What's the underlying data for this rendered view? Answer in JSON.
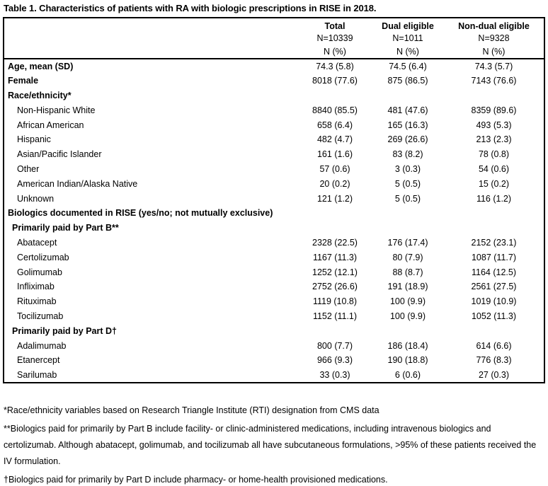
{
  "title": "Table 1. Characteristics of patients with RA with biologic prescriptions in RISE in 2018.",
  "table": {
    "columns": [
      {
        "label": "Total",
        "n": "N=10339",
        "unit": "N (%)"
      },
      {
        "label": "Dual eligible",
        "n": "N=1011",
        "unit": "N (%)"
      },
      {
        "label": "Non-dual eligible",
        "n": "N=9328",
        "unit": "N (%)"
      }
    ],
    "rows": [
      {
        "label": "Age, mean (SD)",
        "bold": true,
        "indent": 0,
        "values": [
          "74.3 (5.8)",
          "74.5 (6.4)",
          "74.3 (5.7)"
        ]
      },
      {
        "label": "Female",
        "bold": true,
        "indent": 0,
        "values": [
          "8018 (77.6)",
          "875 (86.5)",
          "7143 (76.6)"
        ]
      },
      {
        "label": "Race/ethnicity*",
        "bold": true,
        "indent": 0,
        "values": [
          "",
          "",
          ""
        ]
      },
      {
        "label": "Non-Hispanic White",
        "bold": false,
        "indent": 2,
        "values": [
          "8840 (85.5)",
          "481 (47.6)",
          "8359 (89.6)"
        ]
      },
      {
        "label": "African American",
        "bold": false,
        "indent": 2,
        "values": [
          "658 (6.4)",
          "165 (16.3)",
          "493 (5.3)"
        ]
      },
      {
        "label": "Hispanic",
        "bold": false,
        "indent": 2,
        "values": [
          "482 (4.7)",
          "269 (26.6)",
          "213 (2.3)"
        ]
      },
      {
        "label": "Asian/Pacific Islander",
        "bold": false,
        "indent": 2,
        "values": [
          "161 (1.6)",
          "83 (8.2)",
          "78 (0.8)"
        ]
      },
      {
        "label": "Other",
        "bold": false,
        "indent": 2,
        "values": [
          "57 (0.6)",
          "3 (0.3)",
          "54 (0.6)"
        ]
      },
      {
        "label": "American Indian/Alaska Native",
        "bold": false,
        "indent": 2,
        "values": [
          "20 (0.2)",
          "5 (0.5)",
          "15 (0.2)"
        ]
      },
      {
        "label": "Unknown",
        "bold": false,
        "indent": 2,
        "values": [
          "121 (1.2)",
          "5 (0.5)",
          "116 (1.2)"
        ]
      },
      {
        "label": "Biologics documented in RISE (yes/no; not mutually exclusive)",
        "bold": true,
        "indent": 0,
        "values": [
          "",
          "",
          ""
        ]
      },
      {
        "label": "Primarily paid by Part B**",
        "bold": true,
        "indent": 1,
        "values": [
          "",
          "",
          ""
        ]
      },
      {
        "label": "Abatacept",
        "bold": false,
        "indent": 2,
        "values": [
          "2328 (22.5)",
          "176 (17.4)",
          "2152 (23.1)"
        ]
      },
      {
        "label": "Certolizumab",
        "bold": false,
        "indent": 2,
        "values": [
          "1167 (11.3)",
          "80 (7.9)",
          "1087 (11.7)"
        ]
      },
      {
        "label": "Golimumab",
        "bold": false,
        "indent": 2,
        "values": [
          "1252 (12.1)",
          "88 (8.7)",
          "1164 (12.5)"
        ]
      },
      {
        "label": "Infliximab",
        "bold": false,
        "indent": 2,
        "values": [
          "2752 (26.6)",
          "191 (18.9)",
          "2561 (27.5)"
        ]
      },
      {
        "label": "Rituximab",
        "bold": false,
        "indent": 2,
        "values": [
          "1119 (10.8)",
          "100 (9.9)",
          "1019 (10.9)"
        ]
      },
      {
        "label": "Tocilizumab",
        "bold": false,
        "indent": 2,
        "values": [
          "1152 (11.1)",
          "100 (9.9)",
          "1052 (11.3)"
        ]
      },
      {
        "label": "Primarily paid by Part D†",
        "bold": true,
        "indent": 1,
        "values": [
          "",
          "",
          ""
        ]
      },
      {
        "label": "Adalimumab",
        "bold": false,
        "indent": 2,
        "values": [
          "800 (7.7)",
          "186 (18.4)",
          "614 (6.6)"
        ]
      },
      {
        "label": "Etanercept",
        "bold": false,
        "indent": 2,
        "values": [
          "966 (9.3)",
          "190 (18.8)",
          "776 (8.3)"
        ]
      },
      {
        "label": "Sarilumab",
        "bold": false,
        "indent": 2,
        "values": [
          "33 (0.3)",
          "6 (0.6)",
          "27 (0.3)"
        ]
      }
    ]
  },
  "footnotes": [
    "*Race/ethnicity variables based on Research Triangle Institute (RTI) designation from CMS data",
    "**Biologics paid for primarily by Part B include facility- or clinic-administered medications, including intravenous biologics and certolizumab. Although abatacept, golimumab, and tocilizumab all have subcutaneous formulations, >95% of these patients received the IV formulation.",
    "†Biologics paid for primarily by Part D include pharmacy- or home-health provisioned medications."
  ]
}
